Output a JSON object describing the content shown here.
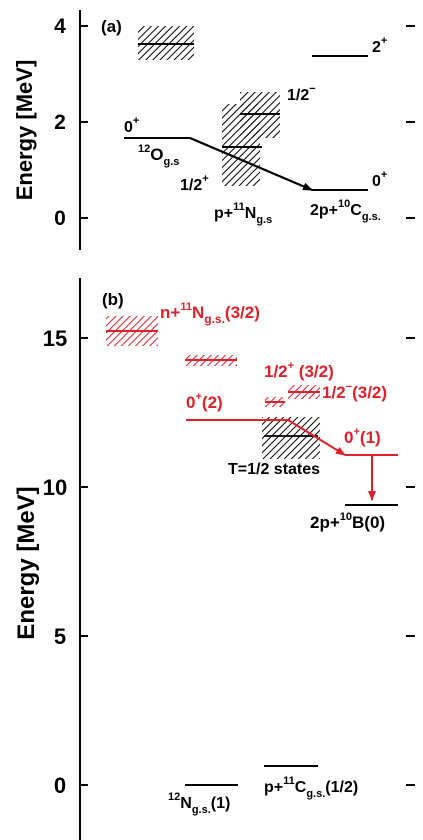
{
  "panels": [
    {
      "panel_label": "(a)",
      "ylabel": "Energy [MeV]",
      "ticks": [
        "0",
        "2",
        "4"
      ],
      "labels": {
        "o12_spin": "0",
        "o12_spin_sup": "+",
        "o12_sup": "12",
        "o12_name": "O",
        "o12_sub": "g.s",
        "half_minus": "1/2",
        "half_minus_sup": "−",
        "half_plus": "1/2",
        "half_plus_sup": "+",
        "two_plus": "2",
        "two_plus_sup": "+",
        "n11_pre": "p+",
        "n11_sup": "11",
        "n11_name": "N",
        "n11_sub": "g.s",
        "c10_spin": "0",
        "c10_spin_sup": "+",
        "c10_pre": "2p+",
        "c10_sup": "10",
        "c10_name": "C",
        "c10_sub": "g.s."
      }
    },
    {
      "panel_label": "(b)",
      "ylabel": "Energy [MeV]",
      "ticks": [
        "0",
        "5",
        "10",
        "15"
      ],
      "labels": {
        "n11_pre": "n+",
        "n11_sup": "11",
        "n11_name": "N",
        "n11_sub": "g.s.",
        "n11_post": "(3/2)",
        "hp_half": "1/2",
        "hp_half_sup": "+",
        "hp_post": " (3/2)",
        "hm_half": "1/2",
        "hm_half_sup": "−",
        "hm_post": "(3/2)",
        "o0_spin": "0",
        "o0_spin_sup": "+",
        "o0_post": "(2)",
        "o1_spin": "0",
        "o1_spin_sup": "+",
        "o1_post": "(1)",
        "t_states": "T=1/2 states",
        "b10_pre": "2p+",
        "b10_sup": "10",
        "b10_name": "B(0)",
        "n12_sup": "12",
        "n12_name": "N",
        "n12_sub": "g.s.",
        "n12_post": "(1)",
        "c11_pre": "p+",
        "c11_sup": "11",
        "c11_name": "C",
        "c11_sub": "g.s.",
        "c11_post": "(1/2)"
      }
    }
  ],
  "colors": {
    "black": "#000000",
    "red": "#e0202a"
  }
}
